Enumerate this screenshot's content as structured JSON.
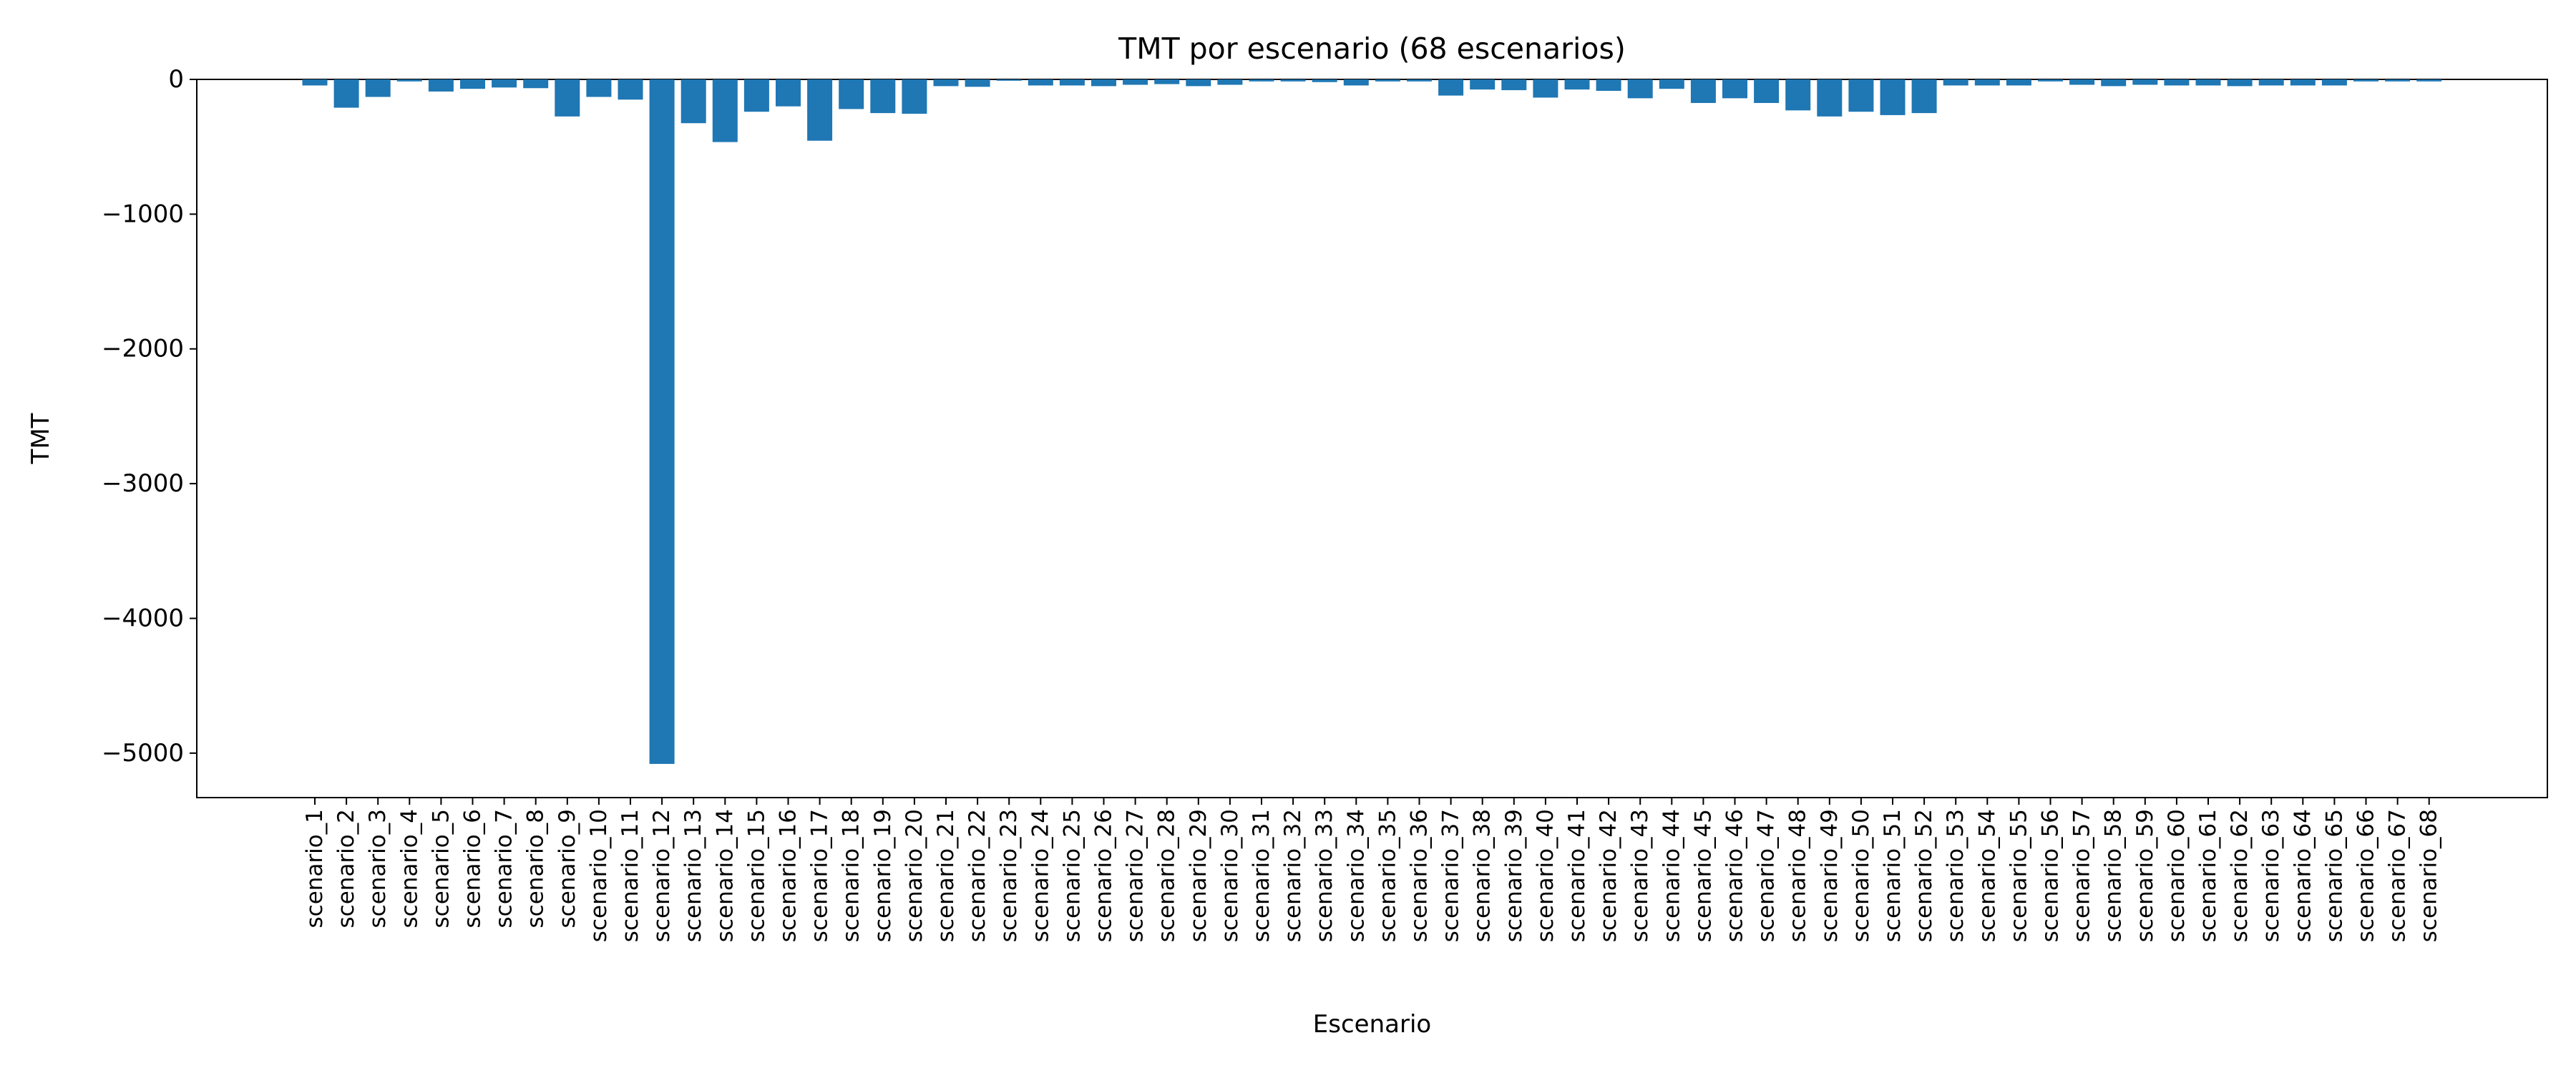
{
  "chart_data": {
    "type": "bar",
    "title": "TMT por escenario (68 escenarios)",
    "xlabel": "Escenario",
    "ylabel": "TMT",
    "ylim": [
      -5330,
      0
    ],
    "yticks": [
      0,
      -1000,
      -2000,
      -3000,
      -4000,
      -5000
    ],
    "ytick_labels": [
      "0",
      "−1000",
      "−2000",
      "−3000",
      "−4000",
      "−5000"
    ],
    "grid": false,
    "legend": "none",
    "bar_color": "#1f77b4",
    "categories": [
      "scenario_1",
      "scenario_2",
      "scenario_3",
      "scenario_4",
      "scenario_5",
      "scenario_6",
      "scenario_7",
      "scenario_8",
      "scenario_9",
      "scenario_10",
      "scenario_11",
      "scenario_12",
      "scenario_13",
      "scenario_14",
      "scenario_15",
      "scenario_16",
      "scenario_17",
      "scenario_18",
      "scenario_19",
      "scenario_20",
      "scenario_21",
      "scenario_22",
      "scenario_23",
      "scenario_24",
      "scenario_25",
      "scenario_26",
      "scenario_27",
      "scenario_28",
      "scenario_29",
      "scenario_30",
      "scenario_31",
      "scenario_32",
      "scenario_33",
      "scenario_34",
      "scenario_35",
      "scenario_36",
      "scenario_37",
      "scenario_38",
      "scenario_39",
      "scenario_40",
      "scenario_41",
      "scenario_42",
      "scenario_43",
      "scenario_44",
      "scenario_45",
      "scenario_46",
      "scenario_47",
      "scenario_48",
      "scenario_49",
      "scenario_50",
      "scenario_51",
      "scenario_52",
      "scenario_53",
      "scenario_54",
      "scenario_55",
      "scenario_56",
      "scenario_57",
      "scenario_58",
      "scenario_59",
      "scenario_60",
      "scenario_61",
      "scenario_62",
      "scenario_63",
      "scenario_64",
      "scenario_65",
      "scenario_66",
      "scenario_67",
      "scenario_68"
    ],
    "values": [
      -45,
      -210,
      -130,
      -15,
      -90,
      -70,
      -60,
      -65,
      -275,
      -130,
      -150,
      -5080,
      -325,
      -465,
      -240,
      -200,
      -455,
      -220,
      -250,
      -255,
      -50,
      -55,
      -10,
      -45,
      -45,
      -50,
      -40,
      -35,
      -50,
      -40,
      -15,
      -15,
      -20,
      -45,
      -15,
      -15,
      -120,
      -75,
      -80,
      -135,
      -75,
      -85,
      -140,
      -70,
      -175,
      -140,
      -175,
      -230,
      -275,
      -240,
      -265,
      -250,
      -45,
      -45,
      -45,
      -15,
      -40,
      -50,
      -40,
      -45,
      -45,
      -50,
      -45,
      -45,
      -45,
      -15,
      -15,
      -15
    ]
  }
}
